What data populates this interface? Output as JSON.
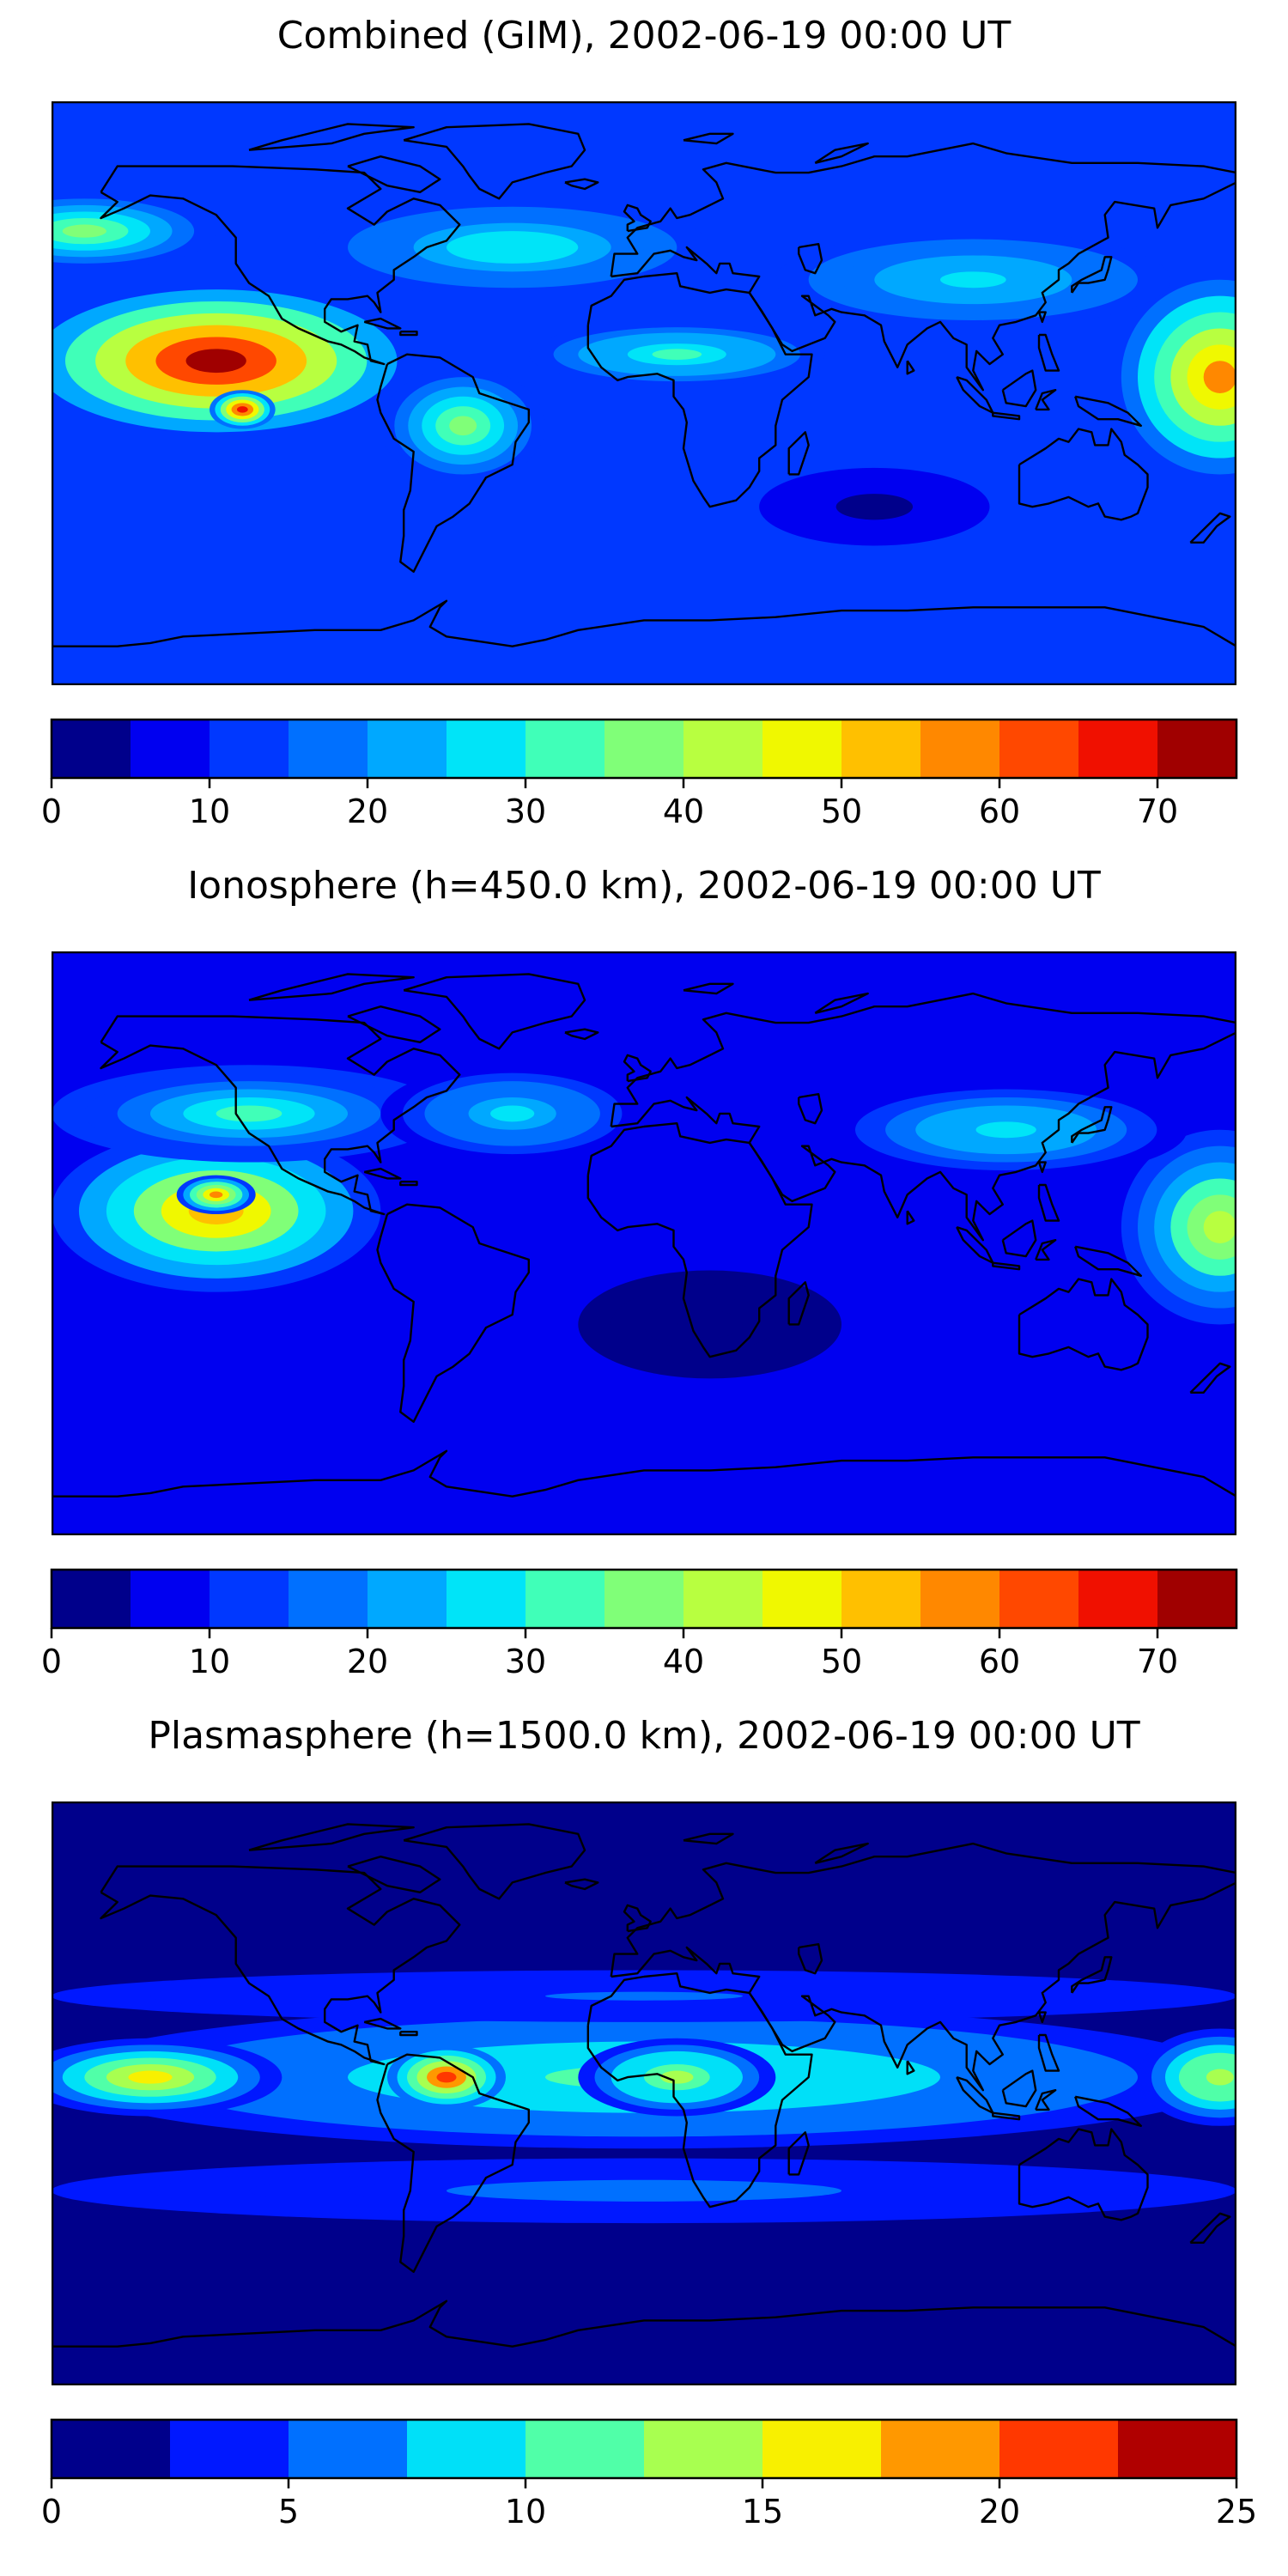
{
  "figure": {
    "panels": [
      {
        "title": "Combined (GIM), 2002-06-19 00:00 UT",
        "colorbar": {
          "min": 0,
          "max": 75,
          "step": 5,
          "ticks": [
            0,
            10,
            20,
            30,
            40,
            50,
            60,
            70
          ]
        }
      },
      {
        "title": "Ionosphere  (h=450.0 km), 2002-06-19 00:00 UT",
        "colorbar": {
          "min": 0,
          "max": 75,
          "step": 5,
          "ticks": [
            0,
            10,
            20,
            30,
            40,
            50,
            60,
            70
          ]
        }
      },
      {
        "title": "Plasmasphere (h=1500.0 km), 2002-06-19 00:00 UT",
        "colorbar": {
          "min": 0,
          "max": 25,
          "step": 2.5,
          "ticks": [
            0,
            5,
            10,
            15,
            20,
            25
          ]
        }
      }
    ]
  },
  "colors": {
    "palette15": [
      "#00008b",
      "#0000f0",
      "#0038ff",
      "#0070ff",
      "#00a8ff",
      "#00e4f8",
      "#40ffb8",
      "#80ff78",
      "#b8ff40",
      "#f0f800",
      "#ffc000",
      "#ff8800",
      "#ff4800",
      "#f01000",
      "#a00000"
    ],
    "palette10": [
      "#00008b",
      "#0018ff",
      "#0070ff",
      "#00e0f8",
      "#50ffa8",
      "#a8ff50",
      "#f8f000",
      "#ff9800",
      "#ff3800",
      "#b00000"
    ],
    "coastline": "#000000"
  },
  "chart_data": [
    {
      "type": "heatmap",
      "title": "Combined (GIM), 2002-06-19 00:00 UT",
      "projection": "global lat-lon, coastlines overlaid",
      "colorbar_range": [
        0,
        75
      ],
      "levels": [
        0,
        5,
        10,
        15,
        20,
        25,
        30,
        35,
        40,
        45,
        50,
        55,
        60,
        65,
        70,
        75
      ],
      "background_level": 10,
      "features": [
        {
          "name": "east-pacific-maximum",
          "lon": -130,
          "lat": 10,
          "rlon": 55,
          "rlat": 22,
          "value": 70
        },
        {
          "name": "east-pacific-inner",
          "lon": -122,
          "lat": -5,
          "rlon": 10,
          "rlat": 6,
          "value": 66
        },
        {
          "name": "west-pacific-max",
          "lon": 175,
          "lat": 5,
          "rlon": 30,
          "rlat": 30,
          "value": 55
        },
        {
          "name": "africa-band",
          "lon": 10,
          "lat": 12,
          "rlon": 45,
          "rlat": 10,
          "value": 32
        },
        {
          "name": "south-america",
          "lon": -55,
          "lat": -10,
          "rlon": 25,
          "rlat": 18,
          "value": 38
        },
        {
          "name": "north-atlantic",
          "lon": -40,
          "lat": 45,
          "rlon": 60,
          "rlat": 15,
          "value": 28
        },
        {
          "name": "asia-band",
          "lon": 100,
          "lat": 35,
          "rlon": 60,
          "rlat": 15,
          "value": 25
        },
        {
          "name": "north-pacific",
          "lon": -170,
          "lat": 50,
          "rlon": 40,
          "rlat": 12,
          "value": 35
        },
        {
          "name": "indian-ocean-low",
          "lon": 70,
          "lat": -35,
          "rlon": 35,
          "rlat": 12,
          "value": 3
        }
      ]
    },
    {
      "type": "heatmap",
      "title": "Ionosphere  (h=450.0 km), 2002-06-19 00:00 UT",
      "projection": "global lat-lon, coastlines overlaid",
      "colorbar_range": [
        0,
        75
      ],
      "levels": [
        0,
        5,
        10,
        15,
        20,
        25,
        30,
        35,
        40,
        45,
        50,
        55,
        60,
        65,
        70,
        75
      ],
      "background_level": 6,
      "features": [
        {
          "name": "east-pacific-maximum",
          "lon": -130,
          "lat": 10,
          "rlon": 50,
          "rlat": 25,
          "value": 53
        },
        {
          "name": "east-pacific-inner",
          "lon": -130,
          "lat": 15,
          "rlon": 12,
          "rlat": 6,
          "value": 56
        },
        {
          "name": "west-pacific",
          "lon": 175,
          "lat": 5,
          "rlon": 30,
          "rlat": 30,
          "value": 42
        },
        {
          "name": "north-pacific",
          "lon": -120,
          "lat": 40,
          "rlon": 60,
          "rlat": 15,
          "value": 32
        },
        {
          "name": "north-atlantic",
          "lon": -40,
          "lat": 40,
          "rlon": 40,
          "rlat": 15,
          "value": 26
        },
        {
          "name": "asia-band",
          "lon": 110,
          "lat": 35,
          "rlon": 55,
          "rlat": 15,
          "value": 28
        },
        {
          "name": "south-america-low",
          "lon": -55,
          "lat": 0,
          "rlon": 15,
          "rlat": 10,
          "value": 5
        },
        {
          "name": "south-atlantic-low",
          "lon": 20,
          "lat": -25,
          "rlon": 60,
          "rlat": 25,
          "value": 3
        }
      ]
    },
    {
      "type": "heatmap",
      "title": "Plasmasphere (h=1500.0 km), 2002-06-19 00:00 UT",
      "projection": "global lat-lon, coastlines overlaid",
      "colorbar_range": [
        0,
        25
      ],
      "levels": [
        0,
        2.5,
        5,
        7.5,
        10,
        12.5,
        15,
        17.5,
        20,
        22.5,
        25
      ],
      "background_level": 2,
      "features": [
        {
          "name": "equatorial-band",
          "lon": 0,
          "lat": 5,
          "rlon": 180,
          "rlat": 22,
          "value": 11
        },
        {
          "name": "south-america-max",
          "lon": -60,
          "lat": 5,
          "rlon": 18,
          "rlat": 10,
          "value": 21
        },
        {
          "name": "east-pacific",
          "lon": -150,
          "lat": 5,
          "rlon": 40,
          "rlat": 12,
          "value": 15
        },
        {
          "name": "africa",
          "lon": 10,
          "lat": 5,
          "rlon": 30,
          "rlat": 12,
          "value": 13
        },
        {
          "name": "west-pacific",
          "lon": 175,
          "lat": 5,
          "rlon": 25,
          "rlat": 15,
          "value": 14
        },
        {
          "name": "southern-band",
          "lon": 0,
          "lat": -30,
          "rlon": 180,
          "rlat": 10,
          "value": 6
        },
        {
          "name": "northern-band",
          "lon": 0,
          "lat": 30,
          "rlon": 180,
          "rlat": 8,
          "value": 5
        }
      ]
    }
  ]
}
